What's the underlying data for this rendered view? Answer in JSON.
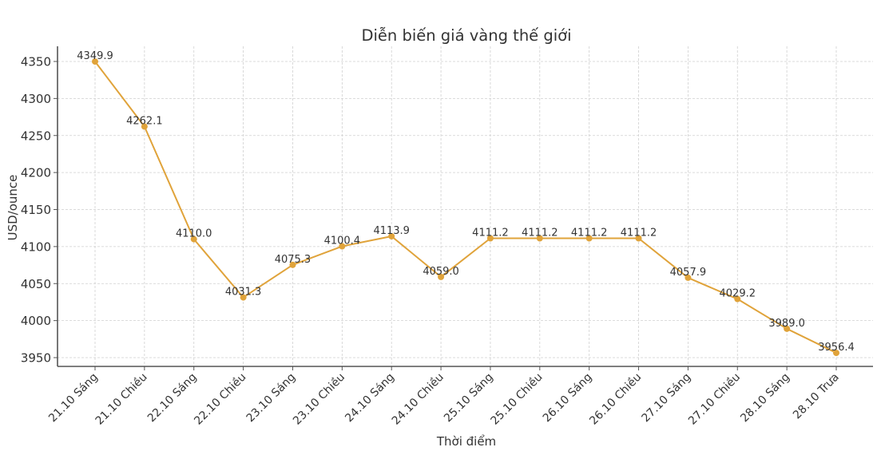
{
  "chart_data": {
    "type": "line",
    "title": "Diễn biến giá vàng thế giới",
    "xlabel": "Thời điểm",
    "ylabel": "USD/ounce",
    "categories": [
      "21.10 Sáng",
      "21.10 Chiều",
      "22.10 Sáng",
      "22.10 Chiều",
      "23.10 Sáng",
      "23.10 Chiều",
      "24.10 Sáng",
      "24.10 Chiều",
      "25.10 Sáng",
      "25.10 Chiều",
      "26.10 Sáng",
      "26.10 Chiều",
      "27.10 Sáng",
      "27.10 Chiều",
      "28.10 Sáng",
      "28.10 Trưa"
    ],
    "series": [
      {
        "name": "Giá vàng thế giới",
        "color": "#E0A33A",
        "values": [
          4349.9,
          4262.1,
          4110.0,
          4031.3,
          4075.3,
          4100.4,
          4113.9,
          4059.0,
          4111.2,
          4111.2,
          4111.2,
          4111.2,
          4057.9,
          4029.2,
          3989.0,
          3956.4
        ],
        "labels": [
          "4349.9",
          "4262.1",
          "4110.0",
          "4031.3",
          "4075.3",
          "4100.4",
          "4113.9",
          "4059.0",
          "4111.2",
          "4111.2",
          "4111.2",
          "4111.2",
          "4057.9",
          "4029.2",
          "3989.0",
          "3956.4"
        ]
      }
    ],
    "yticks": [
      3950,
      4000,
      4050,
      4100,
      4150,
      4200,
      4250,
      4300,
      4350
    ],
    "ytick_labels": [
      "3950",
      "4000",
      "4050",
      "4100",
      "4150",
      "4200",
      "4250",
      "4300",
      "4350"
    ],
    "ylim": [
      3939.5,
      4369
    ],
    "grid": true,
    "grid_style": "dashed",
    "legend": null,
    "xtick_rotation": 45
  },
  "colors": {
    "line": "#E0A33A",
    "text": "#333333",
    "axis": "#555555",
    "grid": "#d0d0d0",
    "background": "#ffffff"
  }
}
